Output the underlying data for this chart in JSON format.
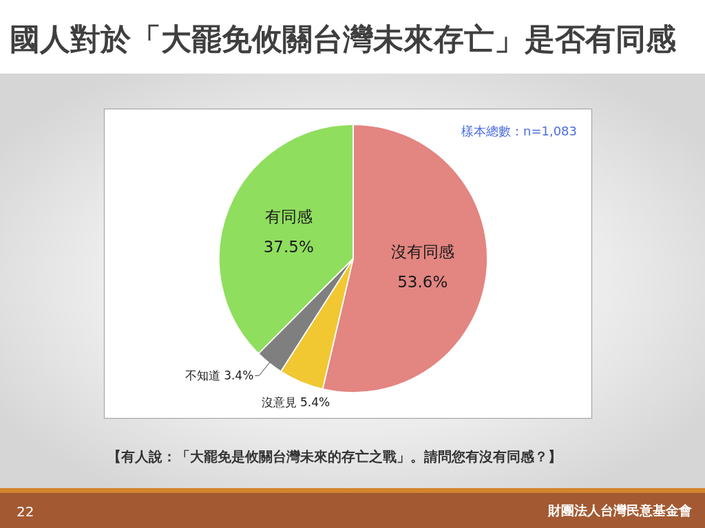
{
  "chart_data": {
    "type": "pie",
    "title": "國人對於「大罷免攸關台灣未來存亡」是否有同感",
    "categories": [
      "沒有同感",
      "沒意見",
      "不知道",
      "有同感"
    ],
    "values": [
      53.6,
      5.4,
      3.4,
      37.5
    ],
    "colors": [
      "#e38581",
      "#f1c732",
      "#7f7f7f",
      "#8fde5e"
    ],
    "value_labels": [
      "53.6%",
      "5.4%",
      "3.4%",
      "37.5%"
    ],
    "annotations": [
      "樣本總數：n=1,083",
      "【有人說：「大罷免是攸關台灣未來的存亡之戰」。請問您有沒有同感？】",
      "22",
      "財團法人台灣民意基金會"
    ]
  }
}
